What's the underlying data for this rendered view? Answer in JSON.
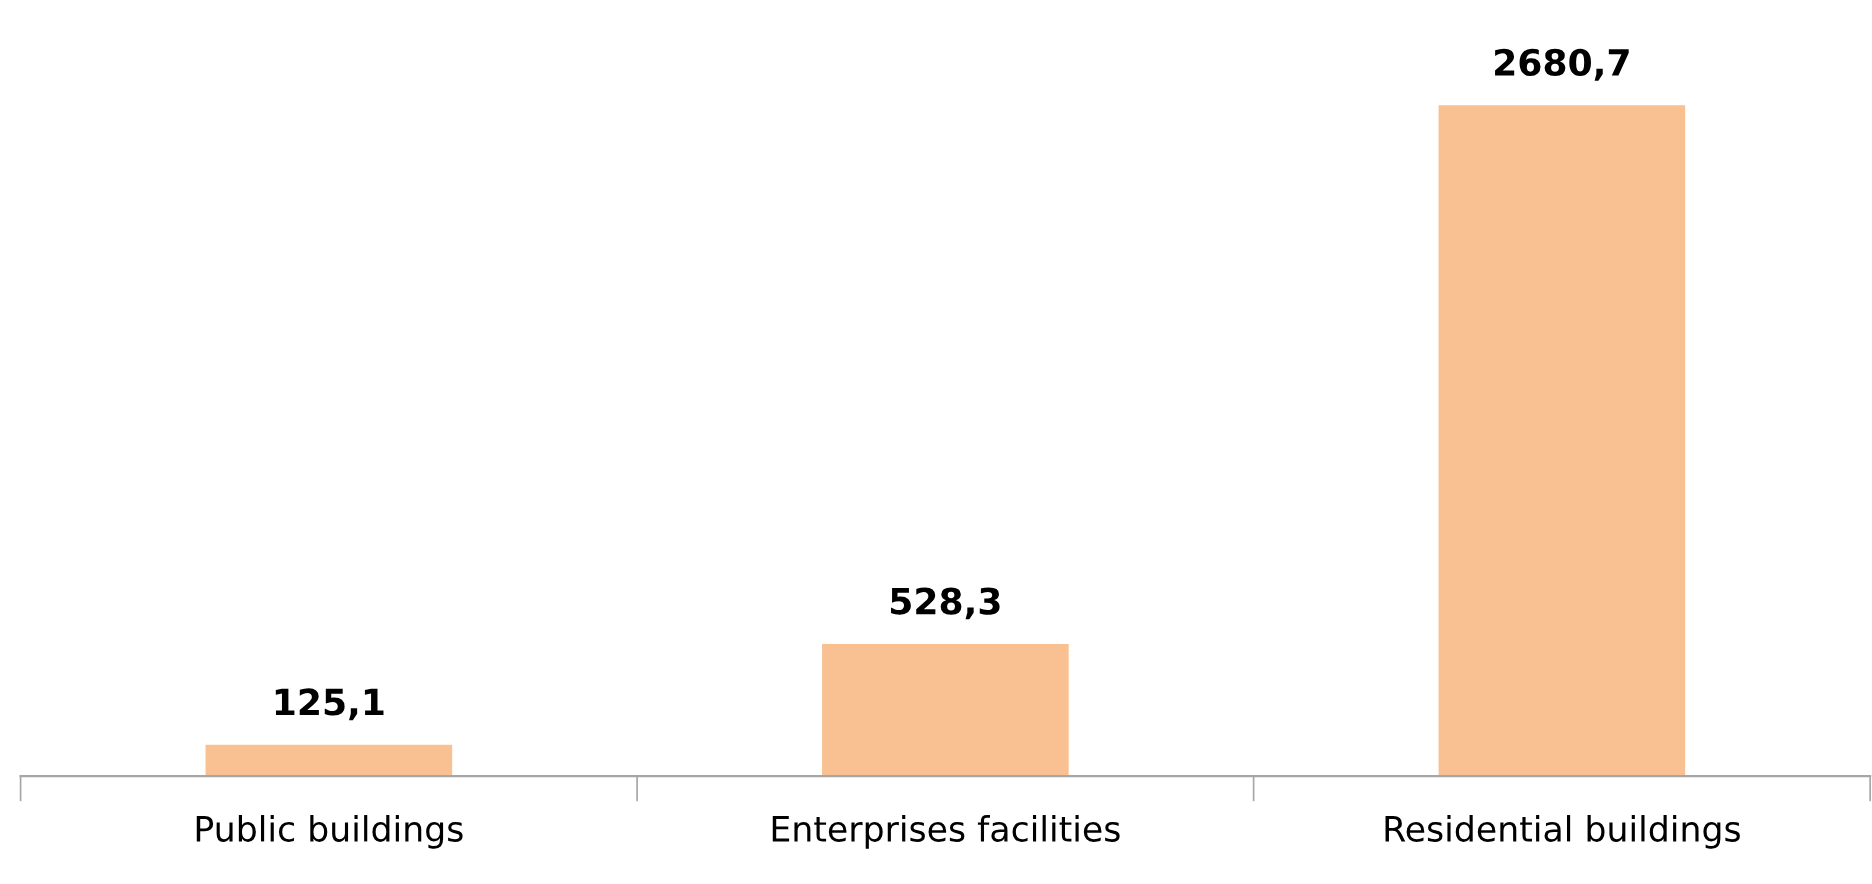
{
  "chart_data": {
    "type": "bar",
    "categories": [
      "Public buildings",
      "Enterprises facilities",
      "Residential buildings"
    ],
    "values": [
      125.1,
      528.3,
      2680.7
    ],
    "value_labels": [
      "125,1",
      "528,3",
      "2680,7"
    ],
    "color": "#f9c191",
    "grid": false,
    "legend": false
  }
}
